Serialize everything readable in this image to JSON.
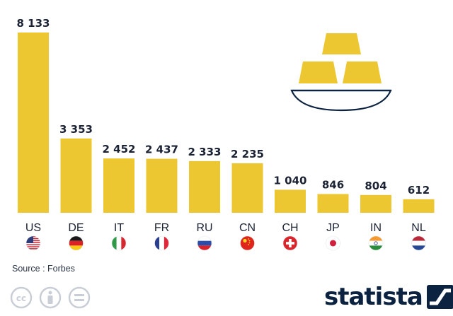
{
  "chart_data": {
    "type": "bar",
    "categories": [
      "US",
      "DE",
      "IT",
      "FR",
      "RU",
      "CN",
      "CH",
      "JP",
      "IN",
      "NL"
    ],
    "values": [
      8133,
      3353,
      2452,
      2437,
      2333,
      2235,
      1040,
      846,
      804,
      612
    ],
    "value_labels": [
      "8 133",
      "3 353",
      "2 452",
      "2 437",
      "2 333",
      "2 235",
      "1 040",
      "846",
      "804",
      "612"
    ],
    "flags": [
      "us-flag-icon",
      "de-flag-icon",
      "it-flag-icon",
      "fr-flag-icon",
      "ru-flag-icon",
      "cn-flag-icon",
      "ch-flag-icon",
      "jp-flag-icon",
      "in-flag-icon",
      "nl-flag-icon"
    ],
    "bar_color": "#ecc731",
    "ylim": [
      0,
      8133
    ],
    "grid": false,
    "title": "",
    "xlabel": "",
    "ylabel": ""
  },
  "footer": {
    "source": "Source : Forbes",
    "brand": "statista"
  },
  "colors": {
    "bar": "#ecc731",
    "text": "#1a2233",
    "brand": "#0b2240"
  }
}
